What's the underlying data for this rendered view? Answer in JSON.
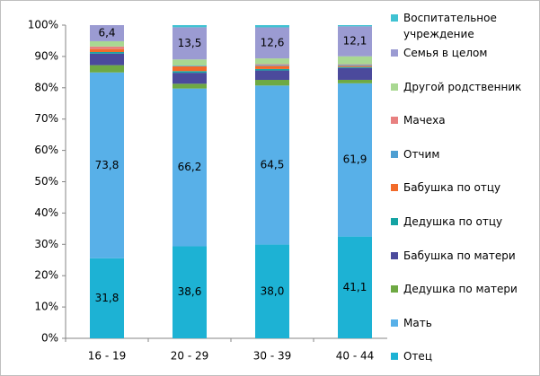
{
  "chart_data": {
    "type": "bar100",
    "categories": [
      "16 - 19",
      "20 - 29",
      "30 - 39",
      "40 - 44"
    ],
    "ylim": [
      0,
      100
    ],
    "yticks": [
      {
        "value": 0,
        "label": "0%"
      },
      {
        "value": 10,
        "label": "10%"
      },
      {
        "value": 20,
        "label": "20%"
      },
      {
        "value": 30,
        "label": "30%"
      },
      {
        "value": 40,
        "label": "40%"
      },
      {
        "value": 50,
        "label": "50%"
      },
      {
        "value": 60,
        "label": "60%"
      },
      {
        "value": 70,
        "label": "70%"
      },
      {
        "value": 80,
        "label": "80%"
      },
      {
        "value": 90,
        "label": "90%"
      },
      {
        "value": 100,
        "label": "100%"
      }
    ],
    "series": [
      {
        "name": "Отец",
        "color": "#1db2d4",
        "values": [
          31.8,
          38.6,
          38.0,
          41.1
        ],
        "value_labels": [
          "31,8",
          "38,6",
          "38,0",
          "41,1"
        ]
      },
      {
        "name": "Мать",
        "color": "#58b0e8",
        "values": [
          73.8,
          66.2,
          64.5,
          61.9
        ],
        "value_labels": [
          "73,8",
          "66,2",
          "64,5",
          "61,9"
        ]
      },
      {
        "name": "Дедушка по матери",
        "color": "#6ea943",
        "values": [
          2.9,
          2.0,
          2.3,
          1.4
        ]
      },
      {
        "name": "Бабушка по матери",
        "color": "#4b4a9c",
        "values": [
          4.6,
          4.6,
          3.8,
          4.8
        ]
      },
      {
        "name": "Дедушка по отцу",
        "color": "#14a3a3",
        "values": [
          0.6,
          0.7,
          0.6,
          0.4
        ]
      },
      {
        "name": "Бабушка по отцу",
        "color": "#f26b2a",
        "values": [
          1.2,
          2.0,
          1.3,
          0.5
        ]
      },
      {
        "name": "Отчим",
        "color": "#4e9fd2",
        "values": [
          0,
          0.3,
          0.4,
          0.4
        ]
      },
      {
        "name": "Мачеха",
        "color": "#e88080",
        "values": [
          1.0,
          0,
          0.3,
          0.2
        ]
      },
      {
        "name": "Другой родственник",
        "color": "#a9d892",
        "values": [
          2.1,
          2.6,
          2.3,
          3.2
        ]
      },
      {
        "name": "Семья в целом",
        "color": "#9b9bd2",
        "values": [
          6.4,
          13.5,
          12.6,
          12.1
        ],
        "value_labels": [
          "6,4",
          "13,5",
          "12,6",
          "12,1"
        ]
      },
      {
        "name": "Воспитательное учреждение",
        "color": "#40c2d2",
        "values": [
          0,
          0.9,
          0.9,
          0.5
        ]
      }
    ]
  }
}
